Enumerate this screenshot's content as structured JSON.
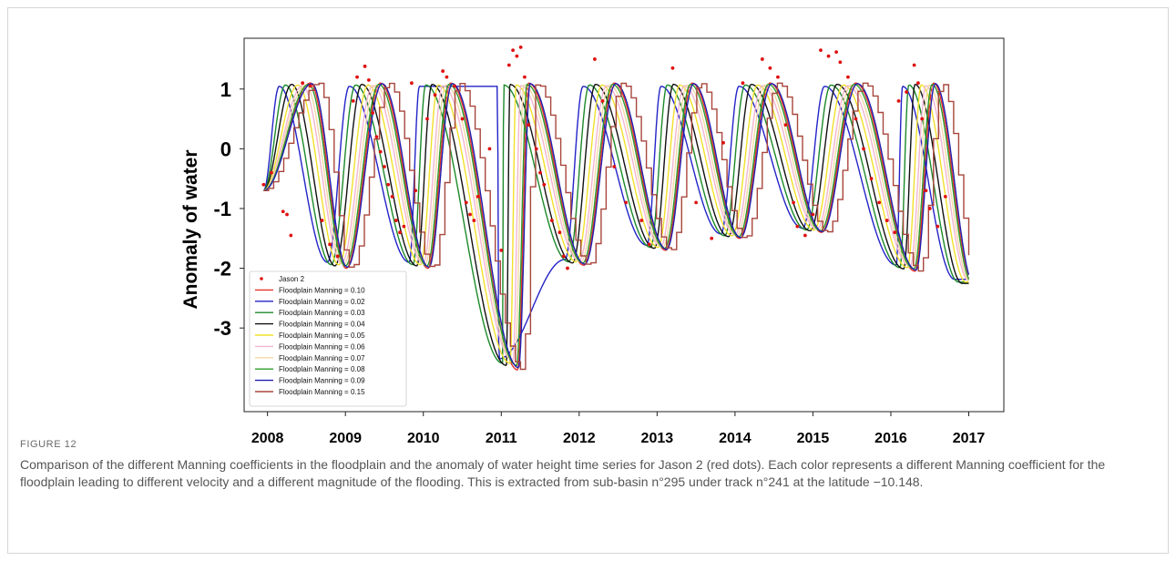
{
  "figure": {
    "label": "FIGURE 12",
    "caption": "Comparison of the different Manning coefficients in the floodplain and the anomaly of water height time series for Jason 2 (red dots). Each color represents a different Manning coefficient for the floodplain leading to different velocity and a different magnitude of the flooding. This is extracted from sub-basin n°295 under track n°241 at the latitude −10.148."
  },
  "chart_data": {
    "type": "line",
    "title": "",
    "xlabel": "",
    "ylabel": "Anomaly of water",
    "xlim": [
      2007.7,
      2017.45
    ],
    "ylim": [
      -4.4,
      1.85
    ],
    "x_ticks": [
      "2008",
      "2009",
      "2010",
      "2011",
      "2012",
      "2013",
      "2014",
      "2015",
      "2016",
      "2017"
    ],
    "y_ticks": [
      "1",
      "0",
      "-1",
      "-2",
      "-3"
    ],
    "legend_position": "lower-left",
    "grid": false,
    "peak_years": [
      2008.45,
      2009.35,
      2010.25,
      2011.25,
      2012.35,
      2013.35,
      2014.35,
      2015.45,
      2016.45
    ],
    "trough_years": [
      2008.95,
      2010.0,
      2011.15,
      2012.0,
      2013.05,
      2014.0,
      2015.05,
      2016.25,
      2017.0
    ],
    "trough_depths": [
      -2.0,
      -2.0,
      -3.7,
      -1.95,
      -1.7,
      -1.5,
      -1.4,
      -2.05,
      -2.3
    ],
    "series": [
      {
        "name": "Floodplain Manning = 0.10",
        "color": "#e8322a",
        "lag": 0.1,
        "amp": 1.0,
        "step": false
      },
      {
        "name": "Floodplain Manning = 0.02",
        "color": "#2323c8",
        "lag": -0.3,
        "amp": 0.95,
        "step": false
      },
      {
        "name": "Floodplain Manning = 0.03",
        "color": "#1c8a2a",
        "lag": -0.22,
        "amp": 0.97,
        "step": false
      },
      {
        "name": "Floodplain Manning = 0.04",
        "color": "#111111",
        "lag": -0.14,
        "amp": 0.98,
        "step": false
      },
      {
        "name": "Floodplain Manning = 0.05",
        "color": "#f2e02a",
        "lag": -0.06,
        "amp": 0.97,
        "step": false
      },
      {
        "name": "Floodplain Manning = 0.06",
        "color": "#f2b6d0",
        "lag": 0.0,
        "amp": 0.96,
        "step": false
      },
      {
        "name": "Floodplain Manning = 0.07",
        "color": "#f3d8a8",
        "lag": 0.04,
        "amp": 0.97,
        "step": false
      },
      {
        "name": "Floodplain Manning = 0.08",
        "color": "#2e9b2e",
        "lag": 0.08,
        "amp": 0.98,
        "step": false
      },
      {
        "name": "Floodplain Manning = 0.09",
        "color": "#1e1eb0",
        "lag": 0.12,
        "amp": 0.99,
        "step": false
      },
      {
        "name": "Floodplain Manning = 0.15",
        "color": "#a8463c",
        "lag": 0.2,
        "amp": 1.0,
        "step": true
      }
    ],
    "scatter": {
      "name": "Jason 2",
      "color": "#e01010",
      "points": [
        [
          2007.95,
          -0.6
        ],
        [
          2008.05,
          -0.4
        ],
        [
          2008.2,
          -1.05
        ],
        [
          2008.25,
          -1.1
        ],
        [
          2008.3,
          -1.45
        ],
        [
          2008.45,
          1.1
        ],
        [
          2008.55,
          1.05
        ],
        [
          2008.7,
          -1.2
        ],
        [
          2008.8,
          -1.6
        ],
        [
          2008.9,
          -1.8
        ],
        [
          2009.1,
          0.8
        ],
        [
          2009.15,
          1.2
        ],
        [
          2009.25,
          1.38
        ],
        [
          2009.3,
          1.15
        ],
        [
          2009.35,
          0.6
        ],
        [
          2009.4,
          0.2
        ],
        [
          2009.45,
          -0.05
        ],
        [
          2009.5,
          -0.3
        ],
        [
          2009.55,
          -0.6
        ],
        [
          2009.6,
          -0.8
        ],
        [
          2009.65,
          -1.2
        ],
        [
          2009.7,
          -1.4
        ],
        [
          2009.75,
          -1.3
        ],
        [
          2009.85,
          1.1
        ],
        [
          2009.9,
          -0.7
        ],
        [
          2010.05,
          0.5
        ],
        [
          2010.15,
          0.9
        ],
        [
          2010.25,
          1.3
        ],
        [
          2010.3,
          1.2
        ],
        [
          2010.4,
          1.05
        ],
        [
          2010.5,
          0.5
        ],
        [
          2010.55,
          -0.9
        ],
        [
          2010.6,
          -1.1
        ],
        [
          2010.65,
          -1.2
        ],
        [
          2010.7,
          -0.8
        ],
        [
          2010.85,
          0.0
        ],
        [
          2011.0,
          -1.7
        ],
        [
          2011.1,
          1.4
        ],
        [
          2011.15,
          1.65
        ],
        [
          2011.2,
          1.55
        ],
        [
          2011.25,
          1.7
        ],
        [
          2011.3,
          1.2
        ],
        [
          2011.35,
          0.4
        ],
        [
          2011.45,
          0.0
        ],
        [
          2011.5,
          -0.4
        ],
        [
          2011.55,
          -0.6
        ],
        [
          2011.65,
          -1.2
        ],
        [
          2011.75,
          -1.4
        ],
        [
          2011.8,
          -1.8
        ],
        [
          2011.85,
          -2.0
        ],
        [
          2012.2,
          1.5
        ],
        [
          2012.3,
          0.8
        ],
        [
          2012.45,
          -0.3
        ],
        [
          2012.6,
          -0.9
        ],
        [
          2012.8,
          -1.2
        ],
        [
          2012.9,
          -1.6
        ],
        [
          2013.2,
          1.35
        ],
        [
          2013.5,
          -0.9
        ],
        [
          2013.7,
          -1.5
        ],
        [
          2013.85,
          0.1
        ],
        [
          2014.1,
          1.1
        ],
        [
          2014.35,
          1.5
        ],
        [
          2014.45,
          1.35
        ],
        [
          2014.55,
          1.2
        ],
        [
          2014.65,
          0.4
        ],
        [
          2014.75,
          -0.9
        ],
        [
          2014.8,
          -1.3
        ],
        [
          2014.9,
          -1.45
        ],
        [
          2015.0,
          -1.1
        ],
        [
          2015.1,
          1.65
        ],
        [
          2015.2,
          1.55
        ],
        [
          2015.3,
          1.62
        ],
        [
          2015.35,
          1.45
        ],
        [
          2015.45,
          1.2
        ],
        [
          2015.55,
          0.5
        ],
        [
          2015.65,
          0.0
        ],
        [
          2015.75,
          -0.5
        ],
        [
          2015.85,
          -0.9
        ],
        [
          2015.95,
          -1.2
        ],
        [
          2016.05,
          -1.4
        ],
        [
          2016.1,
          0.8
        ],
        [
          2016.2,
          0.95
        ],
        [
          2016.3,
          1.4
        ],
        [
          2016.35,
          1.1
        ],
        [
          2016.4,
          0.5
        ],
        [
          2016.45,
          -0.7
        ],
        [
          2016.5,
          -1.0
        ],
        [
          2016.6,
          -1.3
        ],
        [
          2016.7,
          -0.8
        ]
      ]
    }
  }
}
